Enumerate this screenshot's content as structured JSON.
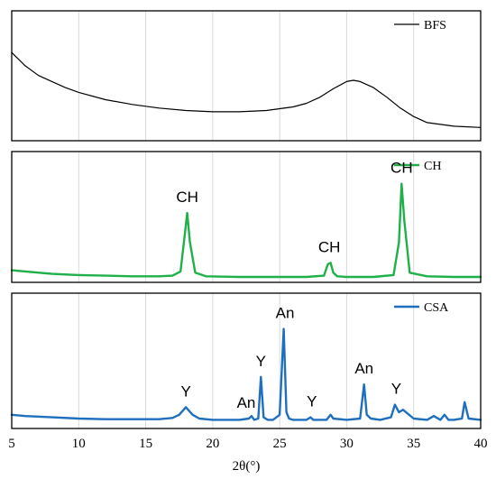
{
  "chart_data": {
    "type": "line",
    "xlabel": "2θ(°)",
    "xlim": [
      5,
      40
    ],
    "x_ticks": [
      5,
      10,
      15,
      20,
      25,
      30,
      35,
      40
    ],
    "grid": true,
    "legend_position": "top-right",
    "panels": [
      {
        "name": "BFS",
        "color": "#000000",
        "ylim": [
          0,
          100
        ],
        "x": [
          5,
          6,
          7,
          8,
          9,
          10,
          12,
          14,
          16,
          18,
          20,
          22,
          24,
          26,
          27,
          28,
          29,
          30,
          30.5,
          31,
          32,
          33,
          34,
          35,
          36,
          38,
          40
        ],
        "y": [
          70,
          59,
          51,
          46,
          41,
          37,
          31,
          27,
          24,
          22,
          21,
          21,
          22,
          25,
          28,
          33,
          40,
          46,
          47,
          46,
          41,
          33,
          24,
          17,
          12,
          9,
          8
        ],
        "peaks": []
      },
      {
        "name": "CH",
        "color": "#1fb04a",
        "ylim": [
          0,
          100
        ],
        "x": [
          5,
          6,
          8,
          10,
          12,
          14,
          16,
          17,
          17.6,
          17.9,
          18.1,
          18.3,
          18.7,
          19.5,
          22,
          25,
          27,
          28.3,
          28.6,
          28.8,
          29.0,
          29.3,
          30,
          32,
          33.5,
          33.9,
          34.1,
          34.3,
          34.7,
          36,
          38,
          40
        ],
        "y": [
          7,
          6,
          4,
          3,
          2.5,
          2,
          2,
          2.5,
          6,
          35,
          54,
          30,
          5,
          2,
          1.5,
          1.5,
          1.5,
          2.5,
          12,
          13,
          5,
          2,
          1.5,
          1.5,
          3,
          30,
          78,
          48,
          5,
          2,
          1.5,
          1.5
        ],
        "peaks": [
          {
            "label": "CH",
            "x": 18.1
          },
          {
            "label": "CH",
            "x": 28.7
          },
          {
            "label": "CH",
            "x": 34.1
          }
        ]
      },
      {
        "name": "CSA",
        "color": "#1f6fbf",
        "ylim": [
          0,
          100
        ],
        "x": [
          5,
          6,
          8,
          10,
          12,
          14,
          16,
          17,
          17.5,
          18.0,
          18.5,
          19,
          20,
          21,
          22,
          22.7,
          22.9,
          23.1,
          23.4,
          23.6,
          23.8,
          24.1,
          24.5,
          25.0,
          25.3,
          25.5,
          25.7,
          26.0,
          27,
          27.3,
          27.5,
          28.5,
          28.8,
          29.0,
          30,
          31,
          31.3,
          31.5,
          31.8,
          32.5,
          33.3,
          33.6,
          33.9,
          34.2,
          35,
          36,
          36.5,
          37,
          37.3,
          37.6,
          38,
          38.6,
          38.8,
          39.1,
          40
        ],
        "y": [
          8,
          7,
          6,
          5,
          4.5,
          4.5,
          4.5,
          5.5,
          8,
          14,
          8,
          5,
          4,
          4,
          4,
          5,
          7,
          4,
          5,
          38,
          6,
          4,
          4,
          8,
          76,
          10,
          5,
          4,
          4,
          6,
          4,
          4,
          8,
          5,
          4,
          5,
          32,
          8,
          5,
          4,
          6,
          16,
          10,
          12,
          5,
          4,
          7,
          4,
          8,
          4,
          4,
          5,
          18,
          5,
          4
        ],
        "peaks": [
          {
            "label": "Y",
            "x": 18.0
          },
          {
            "label": "An",
            "x": 22.5
          },
          {
            "label": "Y",
            "x": 23.6
          },
          {
            "label": "An",
            "x": 25.4
          },
          {
            "label": "Y",
            "x": 27.4
          },
          {
            "label": "An",
            "x": 31.3
          },
          {
            "label": "Y",
            "x": 33.7
          }
        ]
      }
    ]
  }
}
